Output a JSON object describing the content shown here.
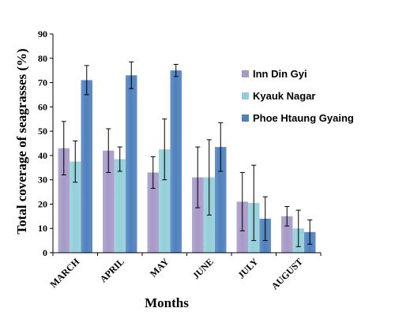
{
  "chart_data": {
    "type": "bar",
    "xlabel": "Months",
    "ylabel": "Total coverage of seagrasses (%)",
    "ylim": [
      0,
      90
    ],
    "yticks": [
      0,
      10,
      20,
      30,
      40,
      50,
      60,
      70,
      80,
      90
    ],
    "grid": false,
    "legend_position": "right",
    "categories": [
      "MARCH",
      "APRIL",
      "MAY",
      "JUNE",
      "JULY",
      "AUGUST"
    ],
    "series": [
      {
        "name": "Inn Din Gyi",
        "color": "#a899c8",
        "values": [
          43,
          42,
          33,
          31,
          21,
          15
        ],
        "error": [
          11,
          9,
          6.5,
          12.5,
          12,
          4
        ]
      },
      {
        "name": "Kyauk Nagar",
        "color": "#93cfda",
        "values": [
          37.5,
          38.5,
          42.5,
          31,
          20.5,
          10
        ],
        "error": [
          8.5,
          5,
          12.5,
          15.5,
          15.5,
          7.5
        ]
      },
      {
        "name": "Phoe Htaung Gyaing",
        "color": "#4f81bd",
        "values": [
          71,
          73,
          75,
          43.5,
          14,
          8.5
        ],
        "error": [
          6,
          5.5,
          2.5,
          10,
          9,
          5
        ]
      }
    ]
  }
}
